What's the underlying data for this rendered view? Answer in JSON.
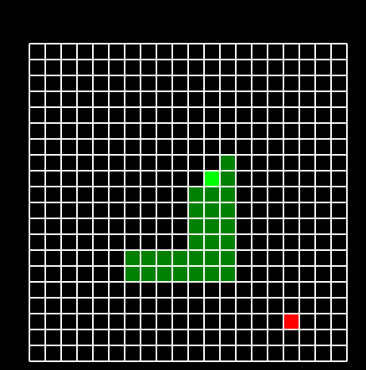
{
  "board": {
    "columns": 20,
    "rows": 20,
    "colors": {
      "background": "#000000",
      "grid_line": "#ffffff",
      "snake_body": "#008000",
      "snake_head": "#00ff00",
      "food": "#ff0000"
    },
    "snake_head": [
      11,
      8
    ],
    "snake_body": [
      [
        12,
        7
      ],
      [
        12,
        8
      ],
      [
        12,
        9
      ],
      [
        12,
        10
      ],
      [
        12,
        11
      ],
      [
        12,
        12
      ],
      [
        12,
        13
      ],
      [
        12,
        14
      ],
      [
        11,
        9
      ],
      [
        11,
        10
      ],
      [
        11,
        11
      ],
      [
        11,
        12
      ],
      [
        11,
        13
      ],
      [
        11,
        14
      ],
      [
        10,
        9
      ],
      [
        10,
        10
      ],
      [
        10,
        11
      ],
      [
        10,
        12
      ],
      [
        10,
        13
      ],
      [
        10,
        14
      ],
      [
        9,
        13
      ],
      [
        9,
        14
      ],
      [
        8,
        13
      ],
      [
        8,
        14
      ],
      [
        7,
        13
      ],
      [
        7,
        14
      ],
      [
        6,
        13
      ],
      [
        6,
        14
      ]
    ],
    "food": [
      [
        16,
        17
      ]
    ]
  }
}
